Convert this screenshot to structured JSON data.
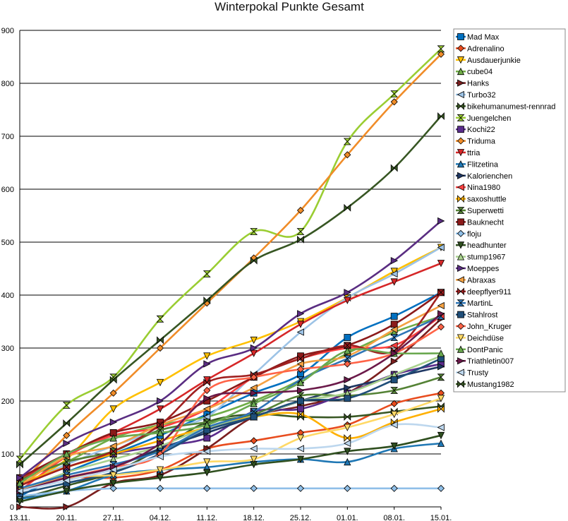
{
  "chart_data": {
    "type": "line",
    "title": "Winterpokal Punkte Gesamt",
    "xlabel": "",
    "ylabel": "",
    "ylim": [
      0,
      900
    ],
    "yticks": [
      0,
      100,
      200,
      300,
      400,
      500,
      600,
      700,
      800,
      900
    ],
    "categories": [
      "13.11.",
      "20.11.",
      "27.11.",
      "04.12.",
      "11.12.",
      "18.12.",
      "25.12.",
      "01.01.",
      "08.01.",
      "15.01."
    ],
    "legend_position": "right",
    "grid": "horizontal",
    "series": [
      {
        "name": "Mad Max",
        "color": "#0070c0",
        "marker": "square",
        "values": [
          20,
          65,
          100,
          135,
          175,
          215,
          250,
          320,
          360,
          405
        ]
      },
      {
        "name": "Adrenalino",
        "color": "#e84c1e",
        "marker": "diamond",
        "values": [
          35,
          55,
          55,
          70,
          110,
          125,
          140,
          155,
          195,
          215
        ]
      },
      {
        "name": "Ausdauerjunkie",
        "color": "#ffc000",
        "marker": "tri-down",
        "values": [
          40,
          90,
          185,
          235,
          285,
          315,
          350,
          395,
          445,
          490
        ]
      },
      {
        "name": "cube04",
        "color": "#70ad47",
        "marker": "tri-up",
        "values": [
          55,
          85,
          130,
          155,
          170,
          200,
          240,
          290,
          330,
          360
        ]
      },
      {
        "name": "Hanks",
        "color": "#7b1f1f",
        "marker": "tri-right",
        "values": [
          0,
          0,
          45,
          60,
          110,
          170,
          190,
          215,
          275,
          355
        ]
      },
      {
        "name": "Turbo32",
        "color": "#9dc3e6",
        "marker": "tri-left",
        "values": [
          40,
          80,
          115,
          145,
          170,
          250,
          330,
          395,
          440,
          490
        ]
      },
      {
        "name": "bikehumanumest-rennrad",
        "color": "#385723",
        "marker": "bowtie",
        "values": [
          15,
          40,
          65,
          110,
          160,
          175,
          170,
          170,
          180,
          190
        ]
      },
      {
        "name": "Juengelchen",
        "color": "#9acd32",
        "marker": "hourglass",
        "values": [
          90,
          192,
          245,
          355,
          440,
          520,
          520,
          690,
          780,
          865
        ]
      },
      {
        "name": "Kochi22",
        "color": "#5b2c8c",
        "marker": "square",
        "values": [
          40,
          75,
          100,
          115,
          130,
          180,
          185,
          215,
          250,
          270
        ]
      },
      {
        "name": "Triduma",
        "color": "#f08c28",
        "marker": "diamond",
        "values": [
          40,
          135,
          215,
          300,
          385,
          470,
          560,
          665,
          765,
          855
        ]
      },
      {
        "name": "ttria",
        "color": "#d62728",
        "marker": "tri-down",
        "values": [
          50,
          100,
          140,
          185,
          240,
          290,
          345,
          390,
          425,
          460
        ]
      },
      {
        "name": "Flitzetina",
        "color": "#1f77b4",
        "marker": "tri-up",
        "values": [
          15,
          30,
          60,
          70,
          75,
          85,
          90,
          85,
          110,
          120
        ]
      },
      {
        "name": "Kalorienchen",
        "color": "#1f3864",
        "marker": "tri-right",
        "values": [
          30,
          55,
          75,
          110,
          140,
          170,
          200,
          225,
          245,
          265
        ]
      },
      {
        "name": "Nina1980",
        "color": "#ff4040",
        "marker": "tri-left",
        "values": [
          30,
          95,
          135,
          150,
          185,
          245,
          280,
          300,
          305,
          360
        ]
      },
      {
        "name": "saxoshuttle",
        "color": "#ffb000",
        "marker": "bowtie",
        "values": [
          45,
          75,
          100,
          125,
          150,
          170,
          175,
          130,
          160,
          185
        ]
      },
      {
        "name": "Superwetti",
        "color": "#548235",
        "marker": "hourglass",
        "values": [
          50,
          85,
          105,
          145,
          160,
          175,
          210,
          210,
          220,
          245
        ]
      },
      {
        "name": "Bauknecht",
        "color": "#8b1a1a",
        "marker": "square",
        "values": [
          55,
          100,
          140,
          160,
          200,
          245,
          285,
          305,
          345,
          405
        ]
      },
      {
        "name": "floju",
        "color": "#8fbfe8",
        "marker": "diamond",
        "values": [
          20,
          30,
          35,
          35,
          35,
          35,
          35,
          35,
          35,
          35
        ]
      },
      {
        "name": "headhunter",
        "color": "#2f4f1f",
        "marker": "tri-down",
        "values": [
          10,
          30,
          45,
          55,
          65,
          80,
          90,
          105,
          115,
          135
        ]
      },
      {
        "name": "stump1967",
        "color": "#a9d18e",
        "marker": "tri-up",
        "values": [
          30,
          65,
          90,
          115,
          150,
          170,
          200,
          215,
          250,
          285
        ]
      },
      {
        "name": "Moeppes",
        "color": "#5a2d82",
        "marker": "tri-right",
        "values": [
          55,
          120,
          160,
          200,
          270,
          300,
          365,
          405,
          465,
          540
        ]
      },
      {
        "name": "Abraxas",
        "color": "#f4a142",
        "marker": "tri-left",
        "values": [
          40,
          95,
          115,
          155,
          185,
          225,
          270,
          285,
          335,
          380
        ]
      },
      {
        "name": "deepflyer911",
        "color": "#a02020",
        "marker": "bowtie",
        "values": [
          40,
          75,
          105,
          155,
          235,
          250,
          280,
          305,
          295,
          405
        ]
      },
      {
        "name": "MartinL",
        "color": "#2e75b6",
        "marker": "hourglass",
        "values": [
          35,
          60,
          80,
          105,
          150,
          180,
          240,
          280,
          320,
          360
        ]
      },
      {
        "name": "Stahlrost",
        "color": "#1f4e79",
        "marker": "square",
        "values": [
          25,
          45,
          65,
          100,
          145,
          170,
          200,
          205,
          240,
          280
        ]
      },
      {
        "name": "John_Kruger",
        "color": "#ff6347",
        "marker": "diamond",
        "values": [
          30,
          55,
          75,
          100,
          220,
          245,
          260,
          270,
          290,
          340
        ]
      },
      {
        "name": "Deichdüse",
        "color": "#ffd966",
        "marker": "tri-down",
        "values": [
          30,
          55,
          60,
          70,
          85,
          90,
          130,
          150,
          175,
          205
        ]
      },
      {
        "name": "DontPanic",
        "color": "#6aa84f",
        "marker": "tri-up",
        "values": [
          45,
          100,
          130,
          140,
          155,
          195,
          235,
          295,
          290,
          290
        ]
      },
      {
        "name": "Triathletin007",
        "color": "#6b1a4a",
        "marker": "tri-right",
        "values": [
          30,
          55,
          75,
          120,
          205,
          215,
          220,
          240,
          290,
          365
        ]
      },
      {
        "name": "Trusty",
        "color": "#bdd7ee",
        "marker": "tri-left",
        "values": [
          30,
          50,
          70,
          95,
          105,
          110,
          110,
          120,
          155,
          150
        ]
      },
      {
        "name": "Mustang1982",
        "color": "#375623",
        "marker": "bowtie",
        "values": [
          80,
          158,
          240,
          315,
          390,
          465,
          505,
          565,
          640,
          738
        ]
      }
    ]
  }
}
